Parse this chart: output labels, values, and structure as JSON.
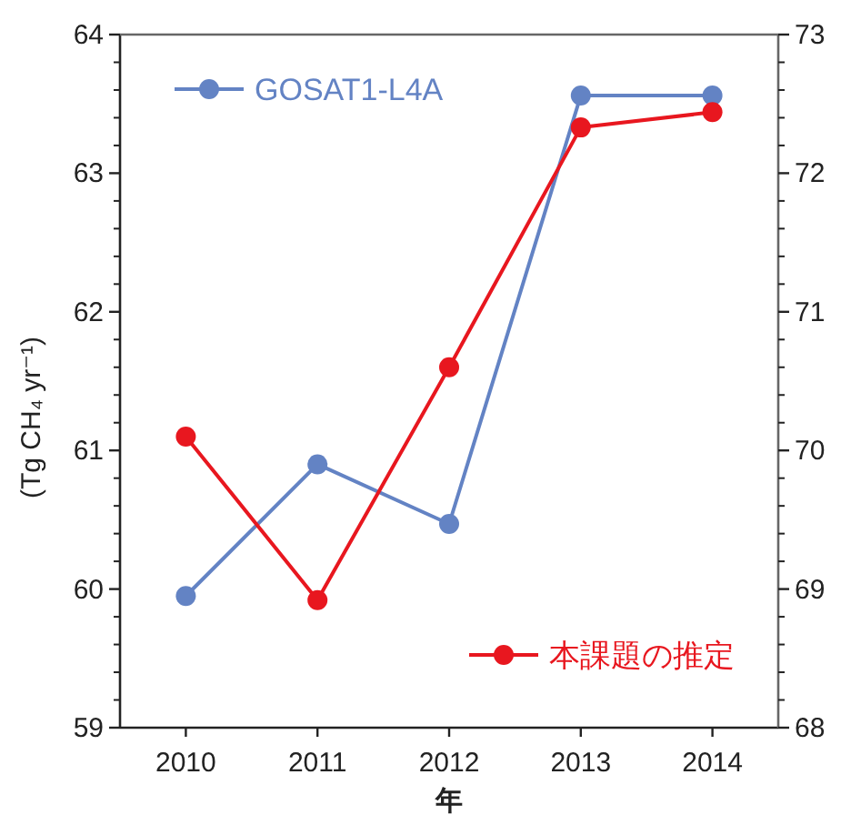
{
  "chart_data": {
    "type": "line",
    "xlabel": "年",
    "ylabel": "(Tg CH₄ yr⁻¹)",
    "categories": [
      "2010",
      "2011",
      "2012",
      "2013",
      "2014"
    ],
    "series": [
      {
        "name": "GOSAT1-L4A",
        "color": "#6383c4",
        "values": [
          59.95,
          60.9,
          60.47,
          63.56,
          63.56
        ]
      },
      {
        "name": "本課題の推定",
        "color": "#e8171f",
        "axis": "y2",
        "values": [
          70.1,
          68.92,
          70.6,
          72.33,
          72.44
        ]
      }
    ],
    "ylim": [
      59,
      64
    ],
    "yticks": [
      59,
      60,
      61,
      62,
      63,
      64
    ],
    "y2lim": [
      68,
      73
    ],
    "y2ticks": [
      68,
      69,
      70,
      71,
      72,
      73
    ],
    "marker": "circle",
    "line_style": "solid",
    "grid": false,
    "legend": "top left"
  }
}
